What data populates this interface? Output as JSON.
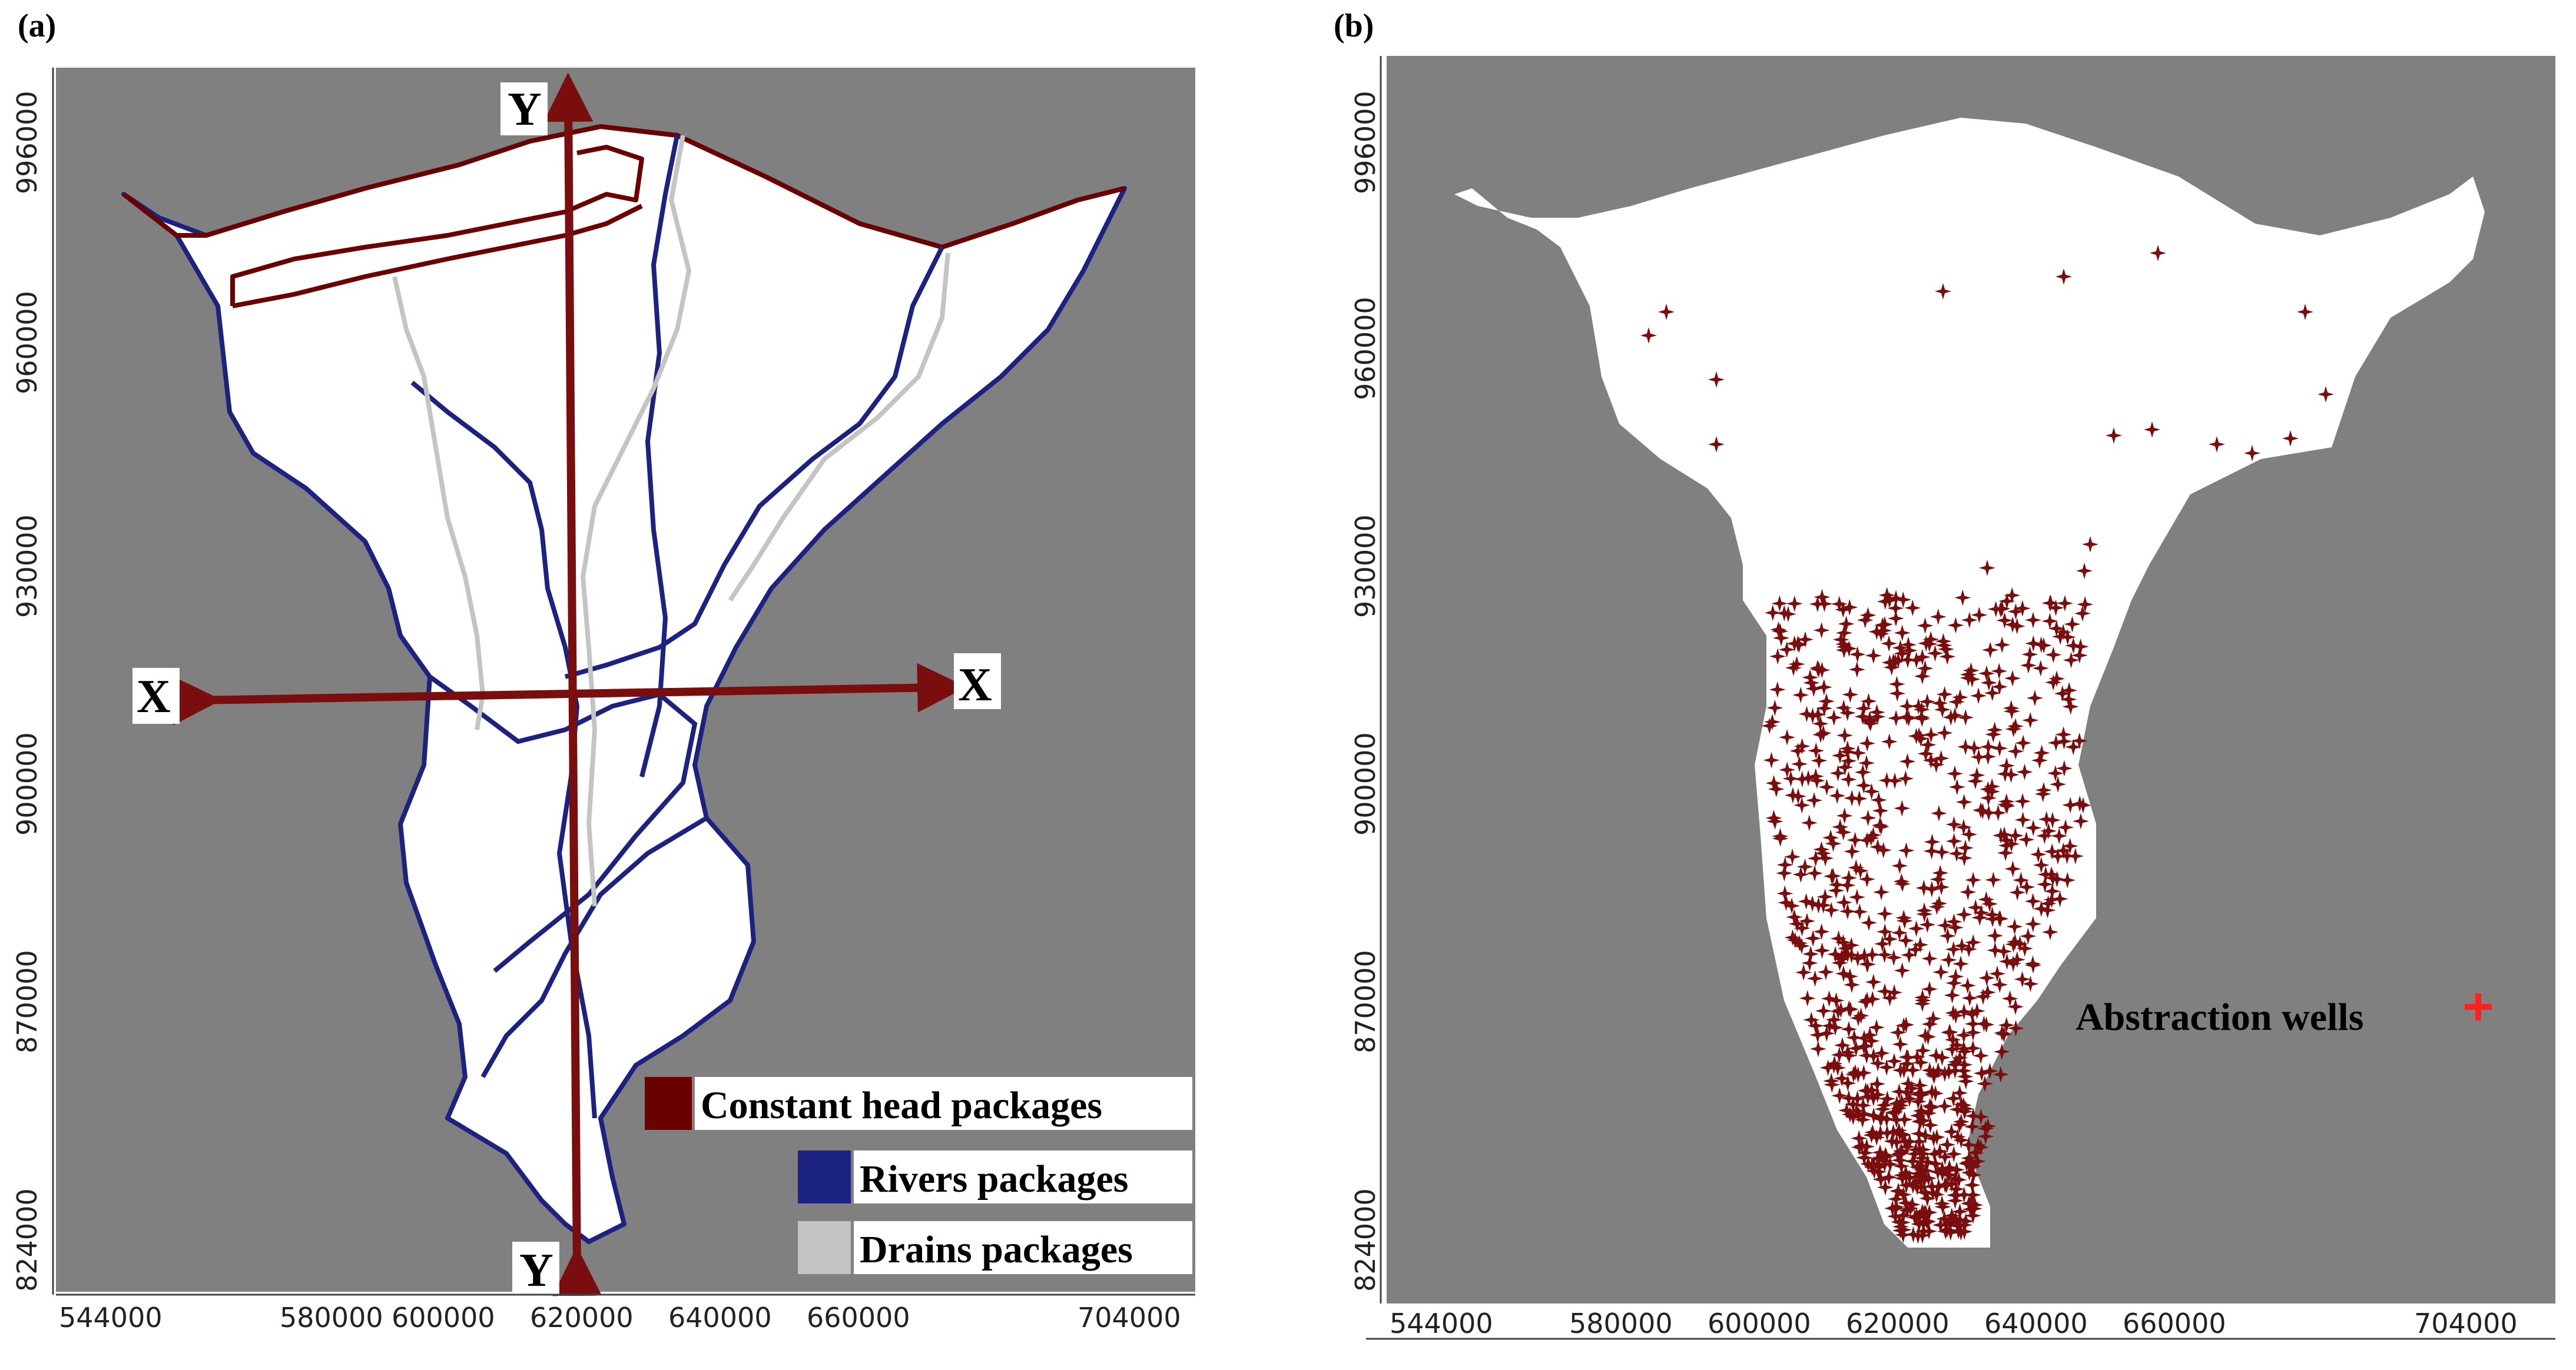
{
  "panels": {
    "a": {
      "label": "(a)",
      "x_ticks": [
        "544000",
        "580000",
        "600000",
        "620000",
        "640000",
        "660000",
        "704000"
      ],
      "y_ticks": [
        "996000",
        "960000",
        "930000",
        "900000",
        "870000",
        "824000"
      ],
      "section_labels": {
        "y_top": "Y",
        "y_bottom": "Y",
        "x_left": "X",
        "x_right": "X"
      },
      "legend": [
        {
          "label": "Constant head packages",
          "color": "#6b0000"
        },
        {
          "label": "Rivers packages",
          "color": "#1c2280"
        },
        {
          "label": "Drains packages",
          "color": "#c4c4c4"
        }
      ]
    },
    "b": {
      "label": "(b)",
      "x_ticks": [
        "544000",
        "580000",
        "600000",
        "620000",
        "640000",
        "660000",
        "704000"
      ],
      "y_ticks": [
        "996000",
        "960000",
        "930000",
        "900000",
        "870000",
        "824000"
      ],
      "legend_label": "Abstraction wells",
      "legend_marker": "+",
      "legend_marker_color": "#ff2020",
      "well_color": "#7a0e0e"
    }
  },
  "colors": {
    "inactive": "#808080",
    "active": "#ffffff",
    "section_arrow": "#7a0e0e"
  }
}
